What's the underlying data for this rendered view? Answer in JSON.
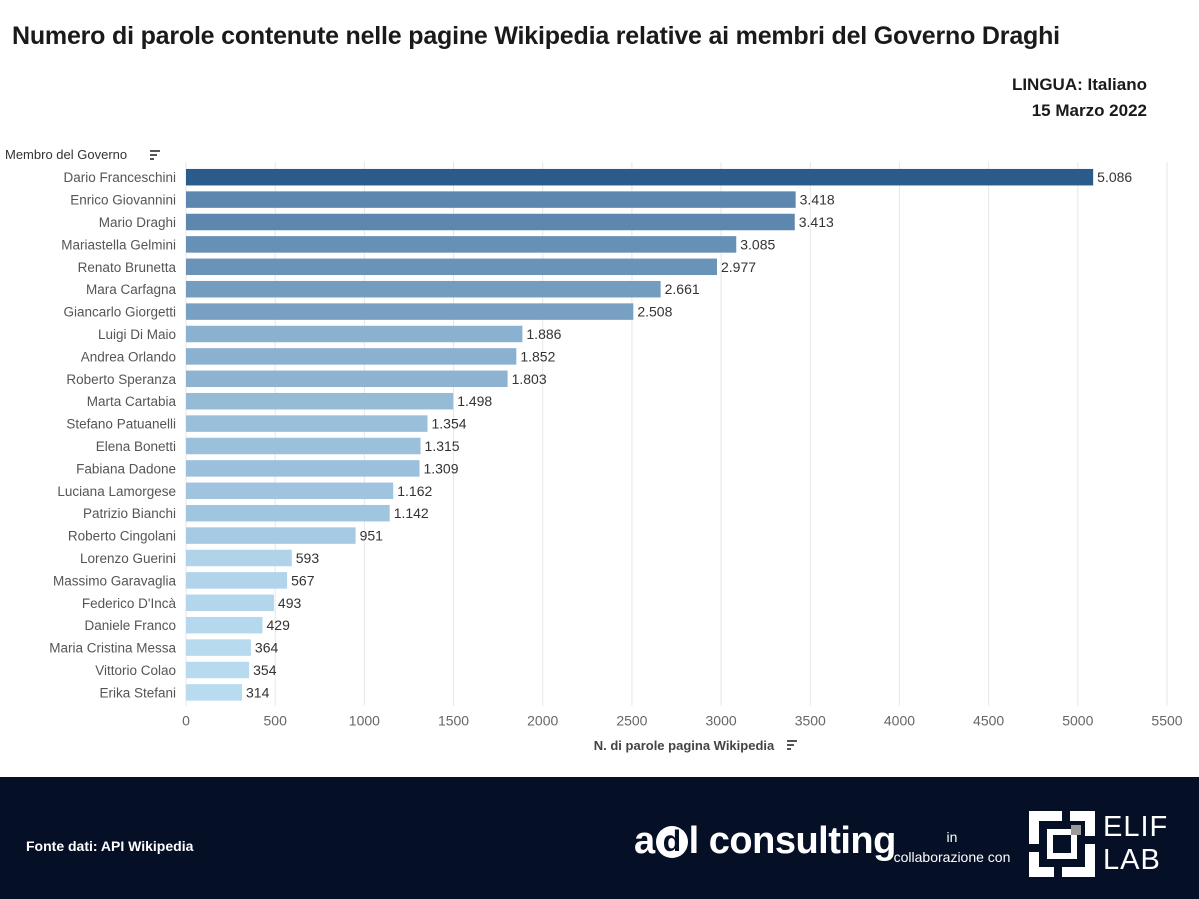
{
  "header": {
    "title": "Numero di parole contenute nelle pagine Wikipedia relative ai membri del Governo Draghi",
    "language": "LINGUA: Italiano",
    "date": "15 Marzo 2022"
  },
  "chart_data": {
    "type": "bar",
    "orientation": "horizontal",
    "ylabel": "Membro del Governo",
    "xlabel": "N. di parole pagina Wikipedia",
    "xlim": [
      0,
      5500
    ],
    "xticks": [
      0,
      500,
      1000,
      1500,
      2000,
      2500,
      3000,
      3500,
      4000,
      4500,
      5000,
      5500
    ],
    "grid": true,
    "categories": [
      "Dario Franceschini",
      "Enrico Giovannini",
      "Mario Draghi",
      "Mariastella Gelmini",
      "Renato Brunetta",
      "Mara Carfagna",
      "Giancarlo Giorgetti",
      "Luigi Di Maio",
      "Andrea Orlando",
      "Roberto Speranza",
      "Marta Cartabia",
      "Stefano Patuanelli",
      "Elena Bonetti",
      "Fabiana Dadone",
      "Luciana Lamorgese",
      "Patrizio Bianchi",
      "Roberto Cingolani",
      "Lorenzo Guerini",
      "Massimo Garavaglia",
      "Federico D'Incà",
      "Daniele Franco",
      "Maria Cristina Messa",
      "Vittorio Colao",
      "Erika Stefani"
    ],
    "values": [
      5086,
      3418,
      3413,
      3085,
      2977,
      2661,
      2508,
      1886,
      1852,
      1803,
      1498,
      1354,
      1315,
      1309,
      1162,
      1142,
      951,
      593,
      567,
      493,
      429,
      364,
      354,
      314
    ],
    "value_labels": [
      "5.086",
      "3.418",
      "3.413",
      "3.085",
      "2.977",
      "2.661",
      "2.508",
      "1.886",
      "1.852",
      "1.803",
      "1.498",
      "1.354",
      "1.315",
      "1.309",
      "1.162",
      "1.142",
      "951",
      "593",
      "567",
      "493",
      "429",
      "364",
      "354",
      "314"
    ],
    "color_range": [
      "#b9dbf0",
      "#2b5a8c"
    ]
  },
  "footer": {
    "source": "Fonte dati:  API Wikipedia",
    "brand_a": "a",
    "brand_d": "d",
    "brand_rest": "l consulting",
    "collab_in": "in",
    "collab_text": "collaborazione con",
    "partner_line1": "ELIF",
    "partner_line2": "LAB"
  }
}
